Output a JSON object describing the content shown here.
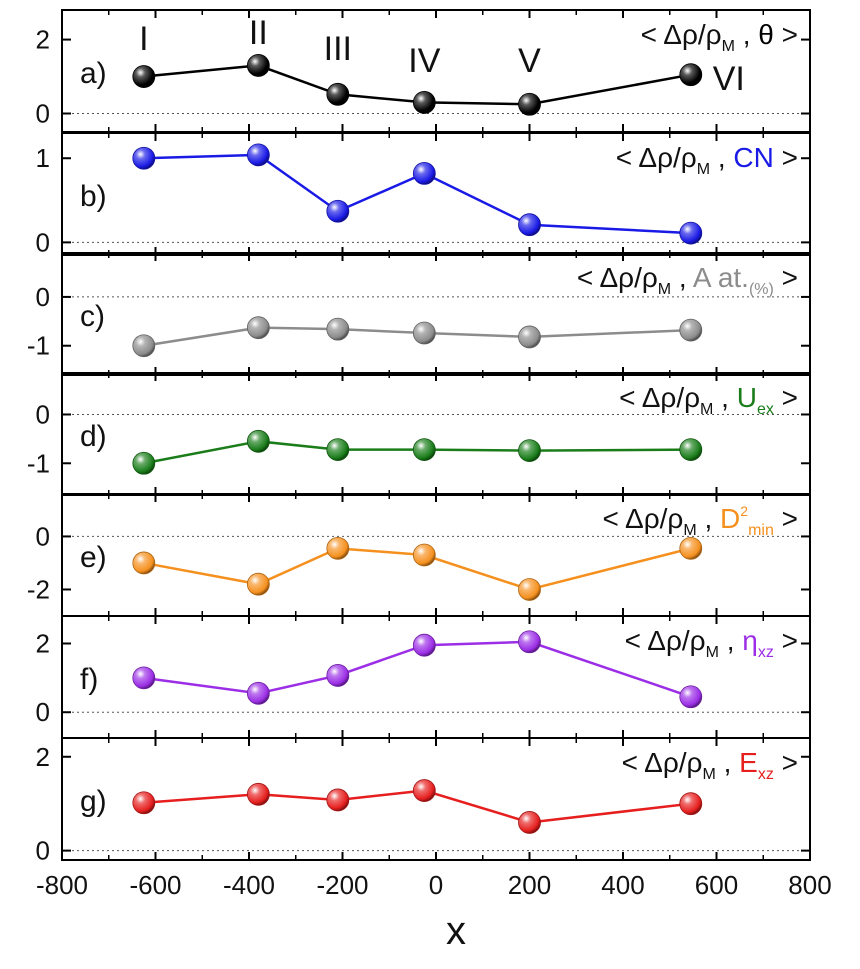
{
  "chart_data": {
    "type": "line",
    "xlabel": "x",
    "xlim": [
      -800,
      800
    ],
    "xticks": [
      -800,
      -600,
      -400,
      -200,
      0,
      200,
      400,
      600,
      800
    ],
    "x": [
      -625,
      -380,
      -210,
      -25,
      200,
      545
    ],
    "site_labels": [
      "I",
      "II",
      "III",
      "IV",
      "V",
      "VI"
    ],
    "panels": [
      {
        "id": "a",
        "letter": "a)",
        "correlation": {
          "lhs": "< Δρ/ρ",
          "sub": "M",
          "sep": " , ",
          "var": "θ",
          "var_sub": "",
          "var_sup": "",
          "rhs": " >"
        },
        "color": "#000000",
        "ylim": [
          -0.5,
          2.8
        ],
        "yticks": [
          0,
          2
        ],
        "y": [
          1.0,
          1.3,
          0.52,
          0.3,
          0.25,
          1.05
        ]
      },
      {
        "id": "b",
        "letter": "b)",
        "correlation": {
          "lhs": "< Δρ/ρ",
          "sub": "M",
          "sep": " , ",
          "var": "CN",
          "var_sub": "",
          "var_sup": "",
          "rhs": " >"
        },
        "color": "#1a1ae6",
        "ylim": [
          -0.15,
          1.3
        ],
        "yticks": [
          0,
          1
        ],
        "y": [
          1.0,
          1.04,
          0.37,
          0.82,
          0.21,
          0.11
        ]
      },
      {
        "id": "c",
        "letter": "c)",
        "correlation": {
          "lhs": "< Δρ/ρ",
          "sub": "M",
          "sep": " , ",
          "var": "A at.",
          "var_sub": "(%)",
          "var_sup": "",
          "rhs": " >"
        },
        "color": "#8c8c8c",
        "ylim": [
          -1.6,
          0.9
        ],
        "yticks": [
          -1,
          0
        ],
        "y": [
          -1.0,
          -0.63,
          -0.66,
          -0.74,
          -0.82,
          -0.68
        ]
      },
      {
        "id": "d",
        "letter": "d)",
        "correlation": {
          "lhs": "< Δρ/ρ",
          "sub": "M",
          "sep": " , ",
          "var": "U",
          "var_sub": "ex",
          "var_sup": "",
          "rhs": " >"
        },
        "color": "#1a7d1a",
        "ylim": [
          -1.65,
          0.85
        ],
        "yticks": [
          -1,
          0
        ],
        "y": [
          -1.0,
          -0.55,
          -0.72,
          -0.72,
          -0.74,
          -0.72
        ]
      },
      {
        "id": "e",
        "letter": "e)",
        "correlation": {
          "lhs": "< Δρ/ρ",
          "sub": "M",
          "sep": " , ",
          "var": "D",
          "var_sub": "min",
          "var_sup": "2",
          "rhs": " >"
        },
        "color": "#f5901e",
        "ylim": [
          -3.0,
          1.6
        ],
        "yticks": [
          -2,
          0
        ],
        "y": [
          -1.0,
          -1.8,
          -0.45,
          -0.7,
          -2.0,
          -0.45
        ]
      },
      {
        "id": "f",
        "letter": "f)",
        "correlation": {
          "lhs": "< Δρ/ρ",
          "sub": "M",
          "sep": " , ",
          "var": "η",
          "var_sub": "xz",
          "var_sup": "",
          "rhs": " >"
        },
        "color": "#9b2ee6",
        "ylim": [
          -0.75,
          2.8
        ],
        "yticks": [
          0,
          2
        ],
        "y": [
          1.0,
          0.55,
          1.07,
          1.95,
          2.05,
          0.45
        ]
      },
      {
        "id": "g",
        "letter": "g)",
        "correlation": {
          "lhs": "< Δρ/ρ",
          "sub": "M",
          "sep": " , ",
          "var": "E",
          "var_sub": "xz",
          "var_sup": "",
          "rhs": " >"
        },
        "color": "#e61e1e",
        "ylim": [
          -0.2,
          2.4
        ],
        "yticks": [
          0,
          2
        ],
        "y": [
          1.02,
          1.2,
          1.08,
          1.28,
          0.6,
          1.0
        ]
      }
    ]
  }
}
